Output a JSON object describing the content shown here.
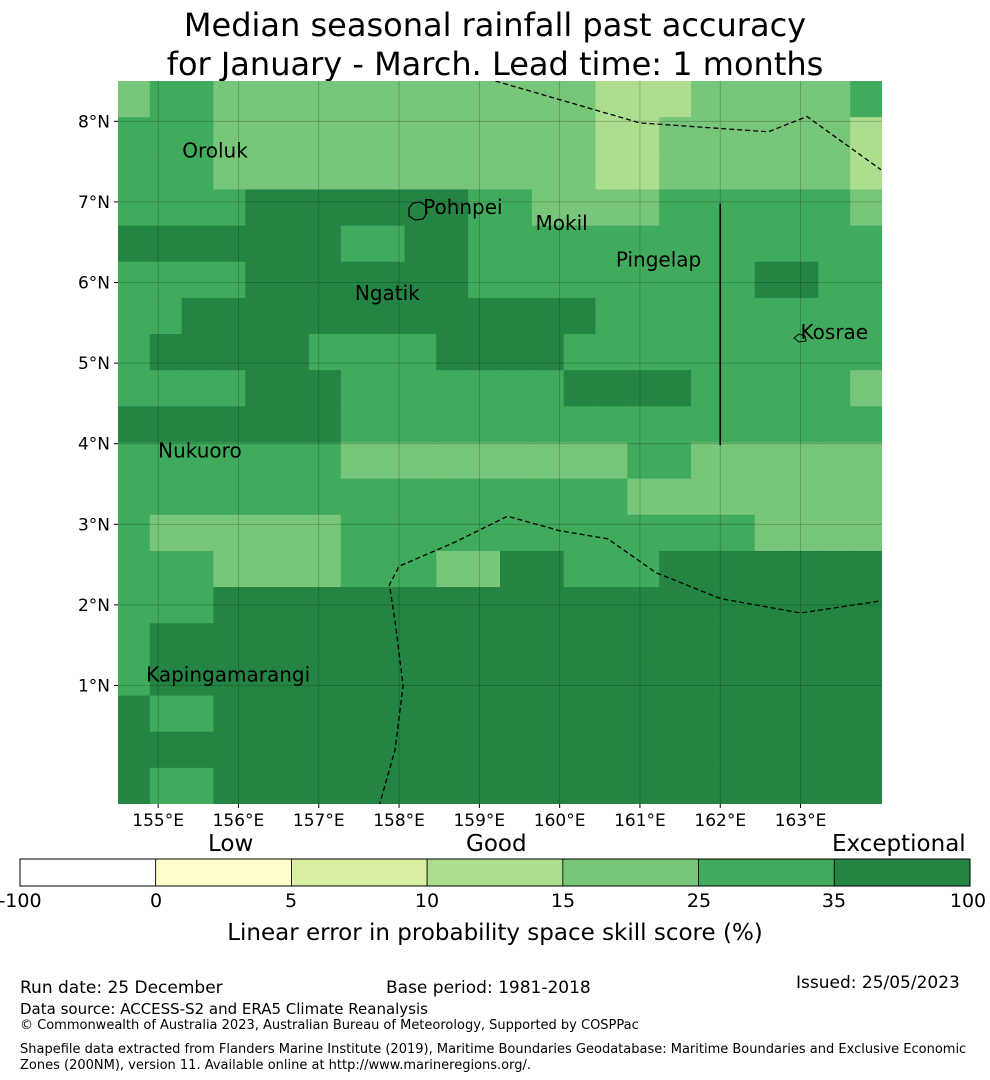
{
  "title_line1": "Median seasonal rainfall past accuracy",
  "title_line2": "for January - March. Lead time: 1 months",
  "map": {
    "grid_size": 9,
    "lon_start": 154.5,
    "lat_top": 8.5,
    "lon_ticks": [
      {
        "value": 155,
        "label": "155°E"
      },
      {
        "value": 156,
        "label": "156°E"
      },
      {
        "value": 157,
        "label": "157°E"
      },
      {
        "value": 158,
        "label": "158°E"
      },
      {
        "value": 159,
        "label": "159°E"
      },
      {
        "value": 160,
        "label": "160°E"
      },
      {
        "value": 161,
        "label": "161°E"
      },
      {
        "value": 162,
        "label": "162°E"
      },
      {
        "value": 163,
        "label": "163°E"
      }
    ],
    "lat_ticks": [
      {
        "value": 8,
        "label": "8°N"
      },
      {
        "value": 7,
        "label": "7°N"
      },
      {
        "value": 6,
        "label": "6°N"
      },
      {
        "value": 5,
        "label": "5°N"
      },
      {
        "value": 4,
        "label": "4°N"
      },
      {
        "value": 3,
        "label": "3°N"
      },
      {
        "value": 2,
        "label": "2°N"
      },
      {
        "value": 1,
        "label": "1°N"
      }
    ],
    "places": [
      {
        "name": "Oroluk",
        "lon": 155.3,
        "lat": 7.55
      },
      {
        "name": "Pohnpei",
        "lon": 158.3,
        "lat": 6.85
      },
      {
        "name": "Mokil",
        "lon": 159.7,
        "lat": 6.65
      },
      {
        "name": "Pingelap",
        "lon": 160.7,
        "lat": 6.2
      },
      {
        "name": "Ngatik",
        "lon": 157.45,
        "lat": 5.78
      },
      {
        "name": "Kosrae",
        "lon": 163.0,
        "lat": 5.3
      },
      {
        "name": "Nukuoro",
        "lon": 155.0,
        "lat": 3.83
      },
      {
        "name": "Kapingamarangi",
        "lon": 154.85,
        "lat": 1.05
      }
    ],
    "cell_classes": [
      [
        4,
        5,
        5,
        4,
        4,
        4,
        4,
        4,
        4,
        4,
        4,
        4,
        4,
        4,
        4,
        3,
        3,
        3,
        4,
        4,
        4,
        4,
        4,
        5
      ],
      [
        5,
        5,
        5,
        4,
        4,
        4,
        4,
        4,
        4,
        4,
        4,
        4,
        4,
        4,
        4,
        3,
        3,
        4,
        4,
        4,
        4,
        4,
        4,
        3
      ],
      [
        5,
        5,
        5,
        4,
        4,
        4,
        4,
        4,
        4,
        4,
        4,
        4,
        4,
        4,
        4,
        3,
        3,
        4,
        4,
        4,
        4,
        4,
        4,
        3
      ],
      [
        5,
        5,
        5,
        5,
        6,
        6,
        6,
        6,
        6,
        6,
        6,
        5,
        5,
        4,
        4,
        4,
        4,
        5,
        5,
        5,
        5,
        5,
        5,
        4
      ],
      [
        6,
        6,
        6,
        6,
        6,
        6,
        6,
        5,
        5,
        6,
        6,
        5,
        5,
        5,
        5,
        5,
        5,
        5,
        5,
        5,
        5,
        5,
        5,
        5
      ],
      [
        5,
        5,
        5,
        5,
        6,
        6,
        6,
        6,
        6,
        6,
        6,
        5,
        5,
        5,
        5,
        5,
        5,
        5,
        5,
        5,
        6,
        6,
        5,
        5
      ],
      [
        5,
        5,
        6,
        6,
        6,
        6,
        6,
        6,
        6,
        6,
        6,
        6,
        6,
        6,
        6,
        5,
        5,
        5,
        5,
        5,
        5,
        5,
        5,
        5
      ],
      [
        5,
        6,
        6,
        6,
        6,
        6,
        5,
        5,
        5,
        5,
        6,
        6,
        6,
        6,
        5,
        5,
        5,
        5,
        5,
        5,
        5,
        5,
        5,
        5
      ],
      [
        5,
        5,
        5,
        5,
        6,
        6,
        6,
        5,
        5,
        5,
        5,
        5,
        5,
        5,
        6,
        6,
        6,
        6,
        5,
        5,
        5,
        5,
        5,
        4
      ],
      [
        6,
        6,
        6,
        6,
        6,
        6,
        6,
        5,
        5,
        5,
        5,
        5,
        5,
        5,
        5,
        5,
        5,
        5,
        5,
        5,
        5,
        5,
        5,
        5
      ],
      [
        5,
        5,
        5,
        5,
        5,
        5,
        5,
        4,
        4,
        4,
        4,
        4,
        4,
        4,
        4,
        4,
        5,
        5,
        4,
        4,
        4,
        4,
        4,
        4
      ],
      [
        5,
        5,
        5,
        5,
        5,
        5,
        5,
        5,
        5,
        5,
        5,
        5,
        5,
        5,
        5,
        5,
        4,
        4,
        4,
        4,
        4,
        4,
        4,
        4
      ],
      [
        5,
        4,
        4,
        4,
        4,
        4,
        4,
        5,
        5,
        5,
        5,
        5,
        5,
        5,
        5,
        5,
        5,
        5,
        5,
        5,
        4,
        4,
        4,
        4
      ],
      [
        5,
        5,
        5,
        4,
        4,
        4,
        4,
        5,
        5,
        5,
        4,
        4,
        6,
        6,
        5,
        5,
        5,
        6,
        6,
        6,
        6,
        6,
        6,
        6
      ],
      [
        5,
        5,
        5,
        6,
        6,
        6,
        6,
        6,
        6,
        6,
        6,
        6,
        6,
        6,
        6,
        6,
        6,
        6,
        6,
        6,
        6,
        6,
        6,
        6
      ],
      [
        5,
        6,
        6,
        6,
        6,
        6,
        6,
        6,
        6,
        6,
        6,
        6,
        6,
        6,
        6,
        6,
        6,
        6,
        6,
        6,
        6,
        6,
        6,
        6
      ],
      [
        5,
        6,
        6,
        6,
        6,
        6,
        6,
        6,
        6,
        6,
        6,
        6,
        6,
        6,
        6,
        6,
        6,
        6,
        6,
        6,
        6,
        6,
        6,
        6
      ],
      [
        6,
        5,
        5,
        6,
        6,
        6,
        6,
        6,
        6,
        6,
        6,
        6,
        6,
        6,
        6,
        6,
        6,
        6,
        6,
        6,
        6,
        6,
        6,
        6
      ],
      [
        6,
        6,
        6,
        6,
        6,
        6,
        6,
        6,
        6,
        6,
        6,
        6,
        6,
        6,
        6,
        6,
        6,
        6,
        6,
        6,
        6,
        6,
        6,
        6
      ],
      [
        6,
        5,
        5,
        6,
        6,
        6,
        6,
        6,
        6,
        6,
        6,
        6,
        6,
        6,
        6,
        6,
        6,
        6,
        6,
        6,
        6,
        6,
        6,
        6
      ]
    ],
    "boundaries": [
      [
        [
          159.2,
          8.5
        ],
        [
          161.0,
          7.98
        ],
        [
          162.6,
          7.87
        ],
        [
          163.08,
          8.06
        ],
        [
          164.0,
          7.4
        ]
      ],
      [
        [
          157.75,
          -0.5
        ],
        [
          157.95,
          0.2
        ],
        [
          158.05,
          1.0
        ],
        [
          157.95,
          1.8
        ],
        [
          157.88,
          2.25
        ],
        [
          158.0,
          2.48
        ],
        [
          158.7,
          2.78
        ],
        [
          159.35,
          3.1
        ],
        [
          160.0,
          2.92
        ],
        [
          160.6,
          2.82
        ],
        [
          161.2,
          2.4
        ],
        [
          162.0,
          2.08
        ],
        [
          163.0,
          1.9
        ],
        [
          164.0,
          2.05
        ]
      ]
    ],
    "meridian_line": [
      [
        162.0,
        6.98
      ],
      [
        162.0,
        3.98
      ]
    ]
  },
  "colorbar": {
    "categories": [
      "Low",
      "Good",
      "Exceptional"
    ],
    "classes": [
      {
        "from": "-100",
        "to": "0",
        "color": "#ffffff"
      },
      {
        "from": "0",
        "to": "5",
        "color": "#ffffcc"
      },
      {
        "from": "5",
        "to": "10",
        "color": "#d9f0a3"
      },
      {
        "from": "10",
        "to": "15",
        "color": "#addd8e"
      },
      {
        "from": "15",
        "to": "25",
        "color": "#78c679"
      },
      {
        "from": "25",
        "to": "35",
        "color": "#41ab5d"
      },
      {
        "from": "35",
        "to": "100",
        "color": "#238443"
      }
    ],
    "ticks": [
      "-100",
      "0",
      "5",
      "10",
      "15",
      "25",
      "35",
      "100"
    ],
    "label": "Linear error in probability space skill score (%)"
  },
  "footer": {
    "run_date": "Run date: 25 December",
    "base_period": "Base period: 1981-2018",
    "issued": "Issued: 25/05/2023",
    "data_source": "Data source: ACCESS-S2 and ERA5 Climate Reanalysis",
    "copyright": "© Commonwealth of Australia 2023, Australian Bureau of Meteorology, Supported by COSPPac",
    "shapefile_note": "Shapefile data extracted from Flanders Marine Institute (2019), Maritime Boundaries Geodatabase: Maritime Boundaries and Exclusive Economic Zones (200NM), version 11. Available online at http://www.marineregions.org/."
  }
}
